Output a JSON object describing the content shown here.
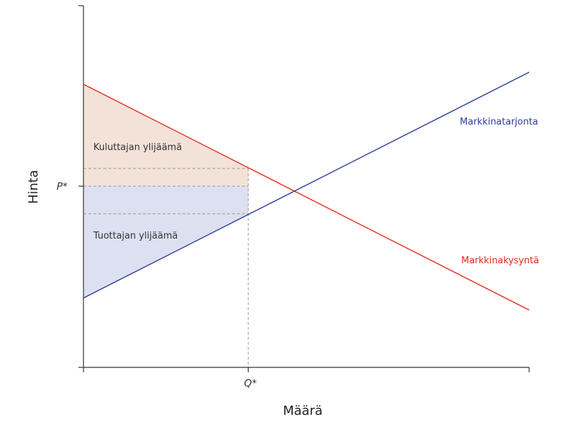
{
  "axes": {
    "x_label": "Määrä",
    "y_label": "Hinta",
    "x_tick": "Q*",
    "y_tick": "P*"
  },
  "curves": {
    "supply_label": "Markkinatarjonta",
    "demand_label": "Markkinakysyntä"
  },
  "regions": {
    "consumer_surplus_label": "Kuluttajan ylijäämä",
    "producer_surplus_label": "Tuottajan ylijäämä"
  },
  "colors": {
    "supply": "#2d3c9b",
    "demand": "#e8291c",
    "consumer_fill": "#f3e2d8",
    "producer_fill": "#dde0f0",
    "axis": "#333333",
    "dashed": "#999999"
  }
}
